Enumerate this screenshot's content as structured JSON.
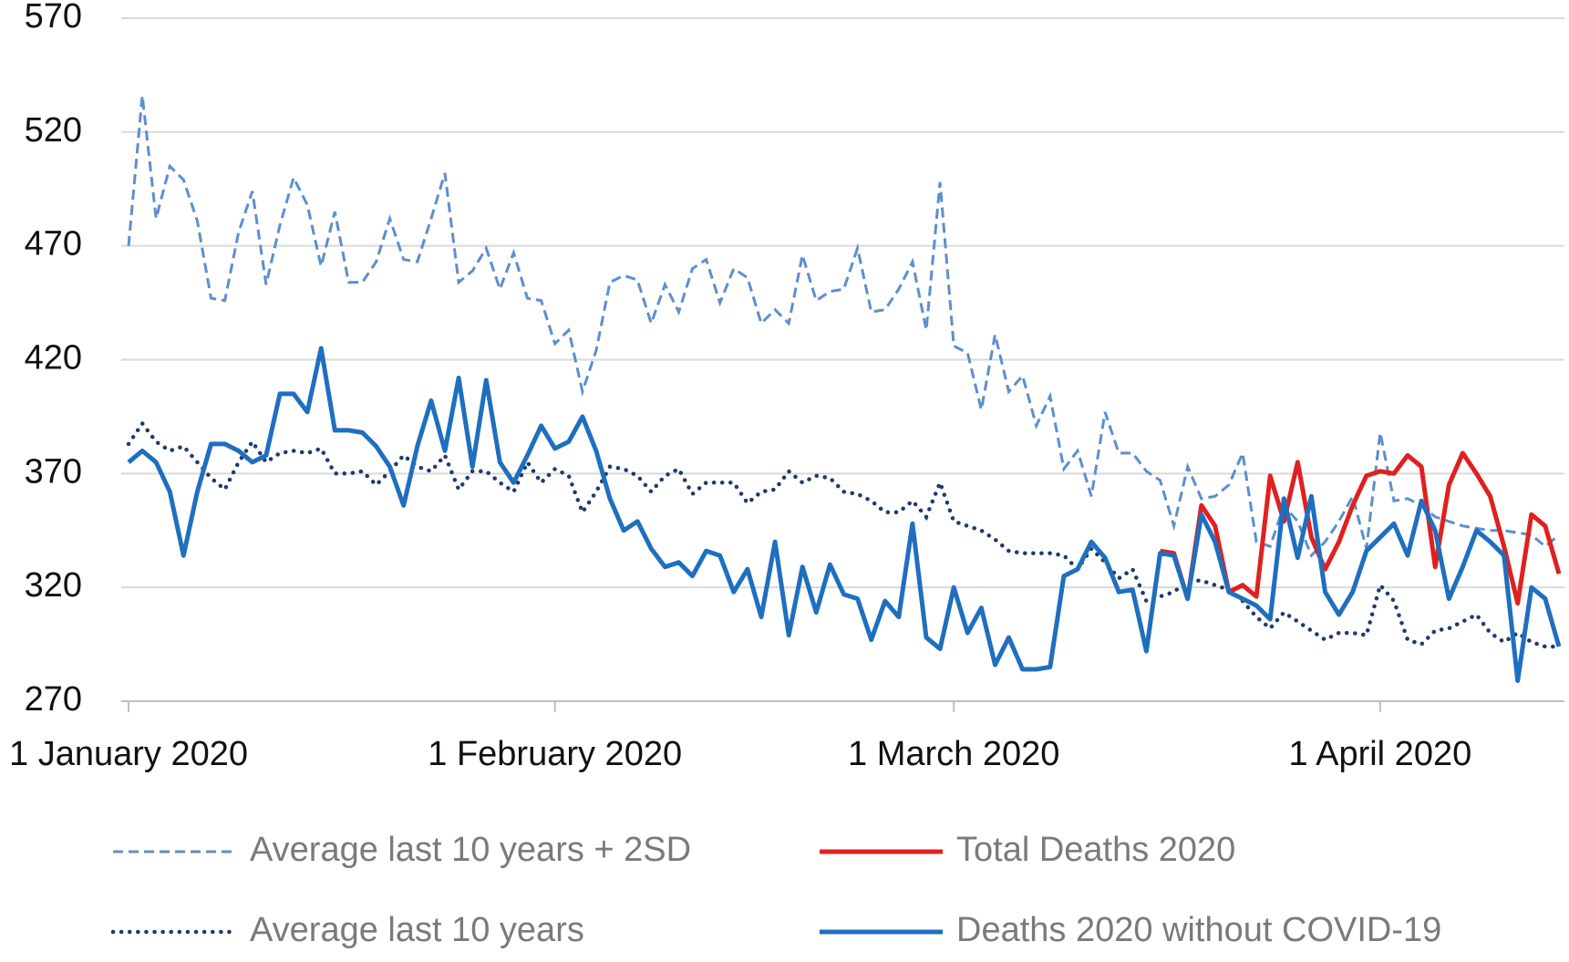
{
  "chart_data": {
    "type": "line",
    "x": [
      "2020-01-01",
      "2020-01-02",
      "2020-01-03",
      "2020-01-04",
      "2020-01-05",
      "2020-01-06",
      "2020-01-07",
      "2020-01-08",
      "2020-01-09",
      "2020-01-10",
      "2020-01-11",
      "2020-01-12",
      "2020-01-13",
      "2020-01-14",
      "2020-01-15",
      "2020-01-16",
      "2020-01-17",
      "2020-01-18",
      "2020-01-19",
      "2020-01-20",
      "2020-01-21",
      "2020-01-22",
      "2020-01-23",
      "2020-01-24",
      "2020-01-25",
      "2020-01-26",
      "2020-01-27",
      "2020-01-28",
      "2020-01-29",
      "2020-01-30",
      "2020-01-31",
      "2020-02-01",
      "2020-02-02",
      "2020-02-03",
      "2020-02-04",
      "2020-02-05",
      "2020-02-06",
      "2020-02-07",
      "2020-02-08",
      "2020-02-09",
      "2020-02-10",
      "2020-02-11",
      "2020-02-12",
      "2020-02-13",
      "2020-02-14",
      "2020-02-15",
      "2020-02-16",
      "2020-02-17",
      "2020-02-18",
      "2020-02-19",
      "2020-02-20",
      "2020-02-21",
      "2020-02-22",
      "2020-02-23",
      "2020-02-24",
      "2020-02-25",
      "2020-02-26",
      "2020-02-27",
      "2020-02-28",
      "2020-02-29",
      "2020-03-01",
      "2020-03-02",
      "2020-03-03",
      "2020-03-04",
      "2020-03-05",
      "2020-03-06",
      "2020-03-07",
      "2020-03-08",
      "2020-03-09",
      "2020-03-10",
      "2020-03-11",
      "2020-03-12",
      "2020-03-13",
      "2020-03-14",
      "2020-03-15",
      "2020-03-16",
      "2020-03-17",
      "2020-03-18",
      "2020-03-19",
      "2020-03-20",
      "2020-03-21",
      "2020-03-22",
      "2020-03-23",
      "2020-03-24",
      "2020-03-25",
      "2020-03-26",
      "2020-03-27",
      "2020-03-28",
      "2020-03-29",
      "2020-03-30",
      "2020-03-31",
      "2020-04-01",
      "2020-04-02",
      "2020-04-03",
      "2020-04-04",
      "2020-04-05",
      "2020-04-06",
      "2020-04-07",
      "2020-04-08",
      "2020-04-09",
      "2020-04-10",
      "2020-04-11",
      "2020-04-12",
      "2020-04-13",
      "2020-04-14"
    ],
    "xlim": [
      "2020-01-01",
      "2020-04-14"
    ],
    "xticks": [
      {
        "value": "2020-01-01",
        "label": "1 January 2020"
      },
      {
        "value": "2020-02-01",
        "label": "1 February 2020"
      },
      {
        "value": "2020-03-01",
        "label": "1 March 2020"
      },
      {
        "value": "2020-04-01",
        "label": "1 April 2020"
      }
    ],
    "ylim": [
      270,
      570
    ],
    "yticks": [
      270,
      320,
      370,
      420,
      470,
      520,
      570
    ],
    "grid": true,
    "series": [
      {
        "name": "Average last 10 years + 2SD",
        "color": "#5b8fd0",
        "dash": "dashed",
        "values": [
          470,
          536,
          482,
          505,
          499,
          481,
          447,
          446,
          476,
          494,
          453,
          479,
          500,
          488,
          461,
          485,
          454,
          454,
          463,
          482,
          464,
          463,
          482,
          502,
          454,
          459,
          469,
          451,
          467,
          447,
          446,
          427,
          433,
          406,
          424,
          454,
          457,
          455,
          436,
          453,
          441,
          460,
          464,
          445,
          460,
          456,
          436,
          442,
          436,
          466,
          446,
          450,
          451,
          469,
          441,
          442,
          451,
          463,
          433,
          498,
          426,
          423,
          398,
          431,
          406,
          413,
          391,
          404,
          372,
          380,
          360,
          397,
          379,
          379,
          371,
          367,
          347,
          373,
          359,
          360,
          365,
          379,
          340,
          338,
          356,
          349,
          334,
          340,
          349,
          360,
          337,
          388,
          358,
          359,
          356,
          351,
          349,
          347,
          346,
          345,
          345,
          344,
          343,
          338,
          343
        ]
      },
      {
        "name": "Total Deaths 2020",
        "color": "#e02020",
        "dash": "solid",
        "values": [
          null,
          null,
          null,
          null,
          null,
          null,
          null,
          null,
          null,
          null,
          null,
          null,
          null,
          null,
          null,
          null,
          null,
          null,
          null,
          null,
          null,
          null,
          null,
          null,
          null,
          null,
          null,
          null,
          null,
          null,
          null,
          null,
          null,
          null,
          null,
          null,
          null,
          null,
          null,
          null,
          null,
          null,
          null,
          null,
          null,
          null,
          null,
          null,
          null,
          null,
          null,
          null,
          null,
          null,
          null,
          null,
          null,
          null,
          null,
          null,
          null,
          null,
          null,
          null,
          null,
          null,
          null,
          null,
          null,
          null,
          null,
          null,
          null,
          null,
          null,
          336,
          335,
          315,
          356,
          347,
          318,
          321,
          316,
          369,
          349,
          375,
          342,
          328,
          340,
          356,
          369,
          371,
          370,
          378,
          373,
          329,
          365,
          379,
          370,
          360,
          338,
          313,
          352,
          347,
          326
        ]
      },
      {
        "name": "Average last 10 years",
        "color": "#1f3a6e",
        "dash": "dotted",
        "values": [
          383,
          392,
          384,
          380,
          382,
          375,
          368,
          363,
          375,
          384,
          375,
          379,
          380,
          379,
          381,
          370,
          370,
          371,
          365,
          371,
          378,
          373,
          371,
          378,
          363,
          371,
          371,
          366,
          362,
          375,
          366,
          372,
          369,
          353,
          362,
          373,
          372,
          369,
          362,
          369,
          372,
          361,
          366,
          366,
          366,
          357,
          362,
          363,
          371,
          366,
          369,
          368,
          362,
          361,
          358,
          353,
          353,
          358,
          351,
          366,
          349,
          347,
          345,
          341,
          336,
          335,
          335,
          335,
          334,
          328,
          337,
          331,
          324,
          328,
          314,
          316,
          318,
          323,
          323,
          321,
          319,
          314,
          307,
          302,
          309,
          305,
          301,
          297,
          300,
          300,
          299,
          321,
          314,
          297,
          295,
          301,
          302,
          305,
          308,
          300,
          296,
          300,
          296,
          294,
          294
        ]
      },
      {
        "name": "Deaths 2020 without COVID-19",
        "color": "#1f6fbf",
        "dash": "solid",
        "values": [
          375,
          380,
          375,
          362,
          334,
          362,
          383,
          383,
          380,
          375,
          378,
          405,
          405,
          397,
          425,
          389,
          389,
          388,
          382,
          373,
          356,
          382,
          402,
          380,
          412,
          373,
          411,
          375,
          366,
          378,
          391,
          381,
          384,
          395,
          380,
          359,
          345,
          349,
          337,
          329,
          331,
          325,
          336,
          334,
          318,
          328,
          307,
          340,
          299,
          329,
          309,
          330,
          317,
          315,
          297,
          314,
          307,
          348,
          298,
          293,
          320,
          300,
          311,
          286,
          298,
          284,
          284,
          285,
          325,
          328,
          340,
          333,
          318,
          319,
          292,
          335,
          334,
          315,
          352,
          340,
          318,
          315,
          312,
          306,
          359,
          333,
          360,
          318,
          308,
          318,
          336,
          342,
          348,
          334,
          358,
          345,
          315,
          329,
          345,
          340,
          334,
          279,
          320,
          315,
          294
        ]
      }
    ]
  }
}
